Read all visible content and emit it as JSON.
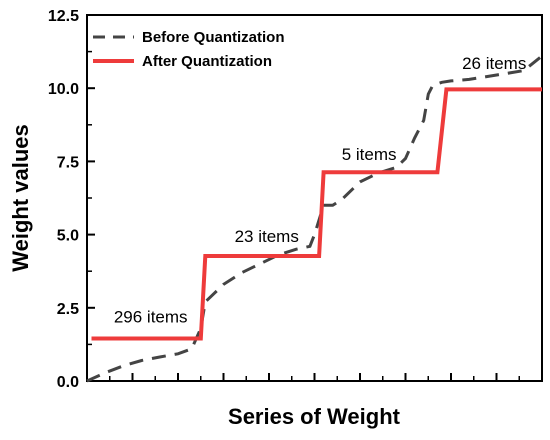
{
  "chart_data": {
    "type": "line",
    "title": "",
    "xlabel": "Series of Weight",
    "ylabel": "Weight values",
    "xlim": [
      0,
      100
    ],
    "ylim": [
      0,
      12.5
    ],
    "yticks": [
      "0.0",
      "2.5",
      "5.0",
      "7.5",
      "10.0",
      "12.5"
    ],
    "grid": false,
    "legend_position": "top-left",
    "series": [
      {
        "name": "Before Quantization",
        "style": "dashed",
        "color": "#444444",
        "x": [
          0,
          4,
          8,
          12,
          16,
          20,
          23,
          25,
          26,
          28,
          30,
          34,
          38,
          42,
          46,
          49,
          50,
          52,
          54,
          56,
          60,
          64,
          68,
          70,
          72,
          74,
          75,
          76,
          78,
          80,
          84,
          88,
          92,
          96,
          100
        ],
        "y": [
          0.0,
          0.28,
          0.52,
          0.7,
          0.82,
          0.93,
          1.1,
          1.8,
          2.7,
          3.0,
          3.3,
          3.7,
          4.0,
          4.3,
          4.5,
          4.6,
          5.0,
          6.0,
          6.0,
          6.2,
          6.8,
          7.1,
          7.3,
          7.6,
          8.3,
          8.9,
          9.8,
          10.1,
          10.2,
          10.25,
          10.3,
          10.4,
          10.5,
          10.6,
          11.1
        ]
      },
      {
        "name": "After Quantization",
        "style": "solid",
        "color": "#ee3b3b",
        "x": [
          1,
          25,
          26,
          51,
          52,
          77,
          79,
          100
        ],
        "y": [
          1.45,
          1.45,
          4.27,
          4.27,
          7.13,
          7.13,
          9.96,
          9.96
        ]
      }
    ],
    "annotations": [
      {
        "text": "296 items",
        "x": 14,
        "y": 2.0
      },
      {
        "text": "23 items",
        "x": 39.5,
        "y": 4.75
      },
      {
        "text": "5 items",
        "x": 62,
        "y": 7.55
      },
      {
        "text": "26 items",
        "x": 89.5,
        "y": 10.65
      }
    ]
  }
}
